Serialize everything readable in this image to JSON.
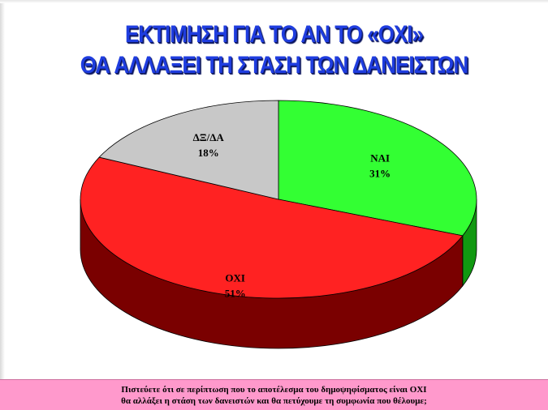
{
  "title": {
    "line1": "ΕΚΤΙΜΗΣΗ ΓΙΑ ΤΟ ΑΝ ΤΟ «ΟΧΙ»",
    "line2": "ΘΑ ΑΛΛΑΞΕΙ ΤΗ ΣΤΑΣΗ ΤΩΝ ΔΑΝΕΙΣΤΩΝ"
  },
  "caption": {
    "line1": "Πιστεύετε ότι σε περίπτωση που το αποτέλεσμα του δημοψηφίσματος είναι ΟΧΙ",
    "line2": "θα αλλάξει η στάση των δανειστών και θα πετύχουμε τη συμφωνία που θέλουμε;"
  },
  "colors": {
    "title": "#1f3ddf",
    "caption_background": "#ff99cc"
  },
  "chart_data": {
    "type": "pie",
    "style": "3d",
    "start_angle_deg": -90,
    "direction": "clockwise",
    "slices": [
      {
        "label": "ΝΑΙ",
        "value": 31,
        "value_label": "31%",
        "color": "#33ff33",
        "side_color": "#119911"
      },
      {
        "label": "ΟΧΙ",
        "value": 51,
        "value_label": "51%",
        "color": "#ff2222",
        "side_color": "#7a0000"
      },
      {
        "label": "ΔΞ/ΔΑ",
        "value": 18,
        "value_label": "18%",
        "color": "#c8c8c8",
        "side_color": "#7a7a7a"
      }
    ]
  }
}
